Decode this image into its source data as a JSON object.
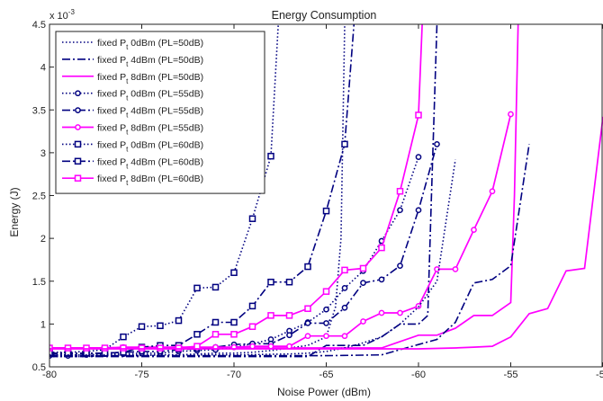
{
  "chart_data": {
    "type": "line",
    "title": "Energy Consumption",
    "xlabel": "Noise Power (dBm)",
    "ylabel": "Energy (J)",
    "exponent_label": "x 10",
    "exponent_power": "-3",
    "xlim": [
      -80,
      -50
    ],
    "ylim": [
      0.5,
      4.5
    ],
    "xticks": [
      -80,
      -75,
      -70,
      -65,
      -60,
      -55,
      -50
    ],
    "xtick_labels": [
      "-80",
      "-75",
      "-70",
      "-65",
      "-60",
      "-55",
      "-50"
    ],
    "yticks": [
      0.5,
      1,
      1.5,
      2,
      2.5,
      3,
      3.5,
      4,
      4.5
    ],
    "ytick_labels": [
      "0.5",
      "1",
      "1.5",
      "2",
      "2.5",
      "3",
      "3.5",
      "4",
      "4.5"
    ],
    "grid": false,
    "legend_position": "top-left",
    "series": [
      {
        "name_parts": [
          "fixed P",
          "t",
          " 0dBm (PL=50dB)"
        ],
        "color": "#000080",
        "line": "dotted",
        "marker": "none",
        "points": [
          [
            -80,
            0.62
          ],
          [
            -79,
            0.62
          ],
          [
            -78,
            0.62
          ],
          [
            -77,
            0.63
          ],
          [
            -76,
            0.63
          ],
          [
            -75,
            0.63
          ],
          [
            -74,
            0.64
          ],
          [
            -73,
            0.64
          ],
          [
            -72,
            0.65
          ],
          [
            -71,
            0.66
          ],
          [
            -70,
            0.66
          ],
          [
            -69,
            0.67
          ],
          [
            -68,
            0.69
          ],
          [
            -67,
            0.72
          ],
          [
            -66,
            0.75
          ],
          [
            -65,
            0.85
          ],
          [
            -64.5,
            1.2
          ],
          [
            -64.2,
            2.0
          ],
          [
            -64,
            4.5
          ]
        ]
      },
      {
        "name_parts": [
          "fixed P",
          "t",
          " 4dBm (PL=50dB)"
        ],
        "color": "#000080",
        "line": "dashdot",
        "marker": "none",
        "points": [
          [
            -80,
            0.62
          ],
          [
            -75,
            0.62
          ],
          [
            -70,
            0.62
          ],
          [
            -66,
            0.62
          ],
          [
            -65,
            0.75
          ],
          [
            -64,
            0.75
          ],
          [
            -63,
            0.75
          ],
          [
            -62,
            0.85
          ],
          [
            -61,
            1.0
          ],
          [
            -60,
            1.0
          ],
          [
            -59.5,
            1.1
          ],
          [
            -59.3,
            2.5
          ],
          [
            -59,
            4.5
          ]
        ]
      },
      {
        "name_parts": [
          "fixed P",
          "t",
          " 8dBm (PL=50dB)"
        ],
        "color": "#ff00ff",
        "line": "solid",
        "marker": "none",
        "points": [
          [
            -80,
            0.72
          ],
          [
            -75,
            0.72
          ],
          [
            -70,
            0.72
          ],
          [
            -65,
            0.72
          ],
          [
            -62,
            0.72
          ],
          [
            -60,
            0.87
          ],
          [
            -59,
            0.87
          ],
          [
            -58,
            0.95
          ],
          [
            -57,
            1.1
          ],
          [
            -56,
            1.1
          ],
          [
            -55,
            1.25
          ],
          [
            -54.8,
            2.5
          ],
          [
            -54.6,
            4.5
          ]
        ]
      },
      {
        "name_parts": [
          "fixed P",
          "t",
          " 0dBm (PL=55dB)"
        ],
        "color": "#000080",
        "line": "dotted",
        "marker": "circle",
        "points": [
          [
            -80,
            0.63
          ],
          [
            -79,
            0.63
          ],
          [
            -78,
            0.64
          ],
          [
            -77,
            0.65
          ],
          [
            -76,
            0.65
          ],
          [
            -75,
            0.66
          ],
          [
            -74,
            0.66
          ],
          [
            -73,
            0.68
          ],
          [
            -72,
            0.69
          ],
          [
            -71,
            0.7
          ],
          [
            -70,
            0.73
          ],
          [
            -69,
            0.77
          ],
          [
            -68,
            0.82
          ],
          [
            -67,
            0.92
          ],
          [
            -66,
            1.02
          ],
          [
            -65,
            1.17
          ],
          [
            -64,
            1.42
          ],
          [
            -63,
            1.62
          ],
          [
            -62,
            1.97
          ],
          [
            -61,
            2.33
          ],
          [
            -60,
            2.95
          ]
        ]
      },
      {
        "name_parts": [
          "fixed P",
          "t",
          " 4dBm (PL=55dB)"
        ],
        "color": "#000080",
        "line": "dashdot",
        "marker": "circle",
        "points": [
          [
            -80,
            0.65
          ],
          [
            -79,
            0.65
          ],
          [
            -78,
            0.65
          ],
          [
            -77,
            0.66
          ],
          [
            -76,
            0.67
          ],
          [
            -75,
            0.68
          ],
          [
            -74,
            0.68
          ],
          [
            -73,
            0.7
          ],
          [
            -72,
            0.71
          ],
          [
            -71,
            0.73
          ],
          [
            -70,
            0.76
          ],
          [
            -69,
            0.77
          ],
          [
            -68,
            0.77
          ],
          [
            -67,
            0.87
          ],
          [
            -66,
            1.01
          ],
          [
            -65,
            1.01
          ],
          [
            -64,
            1.19
          ],
          [
            -63,
            1.48
          ],
          [
            -62,
            1.52
          ],
          [
            -61,
            1.68
          ],
          [
            -60,
            2.33
          ],
          [
            -59,
            3.1
          ]
        ]
      },
      {
        "name_parts": [
          "fixed P",
          "t",
          " 8dBm (PL=55dB)"
        ],
        "color": "#ff00ff",
        "line": "solid",
        "marker": "circle",
        "points": [
          [
            -80,
            0.72
          ],
          [
            -79,
            0.72
          ],
          [
            -78,
            0.72
          ],
          [
            -77,
            0.72
          ],
          [
            -76,
            0.73
          ],
          [
            -75,
            0.73
          ],
          [
            -74,
            0.73
          ],
          [
            -73,
            0.73
          ],
          [
            -72,
            0.73
          ],
          [
            -71,
            0.73
          ],
          [
            -70,
            0.73
          ],
          [
            -69,
            0.74
          ],
          [
            -68,
            0.74
          ],
          [
            -67,
            0.74
          ],
          [
            -66,
            0.86
          ],
          [
            -65,
            0.86
          ],
          [
            -64,
            0.86
          ],
          [
            -63,
            1.03
          ],
          [
            -62,
            1.13
          ],
          [
            -61,
            1.13
          ],
          [
            -60,
            1.21
          ],
          [
            -59,
            1.64
          ],
          [
            -58,
            1.64
          ],
          [
            -57,
            2.1
          ],
          [
            -56,
            2.55
          ],
          [
            -55,
            3.45
          ]
        ]
      },
      {
        "name_parts": [
          "fixed P",
          "t",
          " 0dBm (PL=60dB)"
        ],
        "color": "#000080",
        "line": "dotted",
        "marker": "square",
        "points": [
          [
            -80,
            0.67
          ],
          [
            -79,
            0.67
          ],
          [
            -78,
            0.68
          ],
          [
            -77,
            0.7
          ],
          [
            -76,
            0.85
          ],
          [
            -75,
            0.97
          ],
          [
            -74,
            0.98
          ],
          [
            -73,
            1.04
          ],
          [
            -72,
            1.42
          ],
          [
            -71,
            1.43
          ],
          [
            -70,
            1.6
          ],
          [
            -69,
            2.23
          ],
          [
            -68,
            2.96
          ],
          [
            -67.6,
            4.5
          ]
        ]
      },
      {
        "name_parts": [
          "fixed P",
          "t",
          " 4dBm (PL=60dB)"
        ],
        "color": "#000080",
        "line": "dashdot",
        "marker": "square",
        "points": [
          [
            -80,
            0.66
          ],
          [
            -79,
            0.66
          ],
          [
            -78,
            0.66
          ],
          [
            -77,
            0.66
          ],
          [
            -76,
            0.67
          ],
          [
            -75,
            0.73
          ],
          [
            -74,
            0.75
          ],
          [
            -73,
            0.75
          ],
          [
            -72,
            0.88
          ],
          [
            -71,
            1.02
          ],
          [
            -70,
            1.02
          ],
          [
            -69,
            1.21
          ],
          [
            -68,
            1.49
          ],
          [
            -67,
            1.49
          ],
          [
            -66,
            1.67
          ],
          [
            -65,
            2.32
          ],
          [
            -64,
            3.1
          ],
          [
            -63.5,
            4.5
          ]
        ]
      },
      {
        "name_parts": [
          "fixed P",
          "t",
          " 8dBm (PL=60dB)"
        ],
        "color": "#ff00ff",
        "line": "solid",
        "marker": "square",
        "points": [
          [
            -80,
            0.72
          ],
          [
            -79,
            0.72
          ],
          [
            -78,
            0.72
          ],
          [
            -77,
            0.72
          ],
          [
            -76,
            0.72
          ],
          [
            -75,
            0.72
          ],
          [
            -74,
            0.72
          ],
          [
            -73,
            0.72
          ],
          [
            -72,
            0.74
          ],
          [
            -71,
            0.88
          ],
          [
            -70,
            0.88
          ],
          [
            -69,
            0.97
          ],
          [
            -68,
            1.1
          ],
          [
            -67,
            1.1
          ],
          [
            -66,
            1.18
          ],
          [
            -65,
            1.38
          ],
          [
            -64,
            1.63
          ],
          [
            -63,
            1.65
          ],
          [
            -62,
            1.89
          ],
          [
            -61,
            2.55
          ],
          [
            -60,
            3.44
          ],
          [
            -59.8,
            4.5
          ]
        ]
      },
      {
        "name_parts": [
          "",
          "",
          ""
        ],
        "color": "#000080",
        "line": "dotted",
        "marker": "none",
        "points": [
          [
            -80,
            0.64
          ],
          [
            -75,
            0.64
          ],
          [
            -70,
            0.64
          ],
          [
            -67,
            0.65
          ],
          [
            -66,
            0.66
          ],
          [
            -65,
            0.68
          ],
          [
            -64,
            0.72
          ],
          [
            -63,
            0.78
          ],
          [
            -62,
            0.85
          ],
          [
            -61,
            1.0
          ],
          [
            -60,
            1.2
          ],
          [
            -59,
            1.5
          ],
          [
            -58,
            2.92
          ]
        ]
      },
      {
        "name_parts": [
          "",
          "",
          ""
        ],
        "color": "#000080",
        "line": "dashdot",
        "marker": "none",
        "points": [
          [
            -80,
            0.63
          ],
          [
            -75,
            0.63
          ],
          [
            -70,
            0.63
          ],
          [
            -65,
            0.63
          ],
          [
            -62,
            0.64
          ],
          [
            -61,
            0.7
          ],
          [
            -60,
            0.76
          ],
          [
            -59,
            0.82
          ],
          [
            -58,
            1.02
          ],
          [
            -57,
            1.48
          ],
          [
            -56,
            1.52
          ],
          [
            -55,
            1.68
          ],
          [
            -54,
            3.1
          ]
        ]
      },
      {
        "name_parts": [
          "",
          "",
          ""
        ],
        "color": "#ff00ff",
        "line": "solid",
        "marker": "none",
        "points": [
          [
            -80,
            0.71
          ],
          [
            -75,
            0.71
          ],
          [
            -70,
            0.71
          ],
          [
            -65,
            0.71
          ],
          [
            -60,
            0.71
          ],
          [
            -58,
            0.72
          ],
          [
            -57,
            0.73
          ],
          [
            -56,
            0.74
          ],
          [
            -55,
            0.85
          ],
          [
            -54,
            1.12
          ],
          [
            -53,
            1.18
          ],
          [
            -52,
            1.62
          ],
          [
            -51,
            1.65
          ],
          [
            -50,
            3.42
          ]
        ]
      }
    ]
  }
}
